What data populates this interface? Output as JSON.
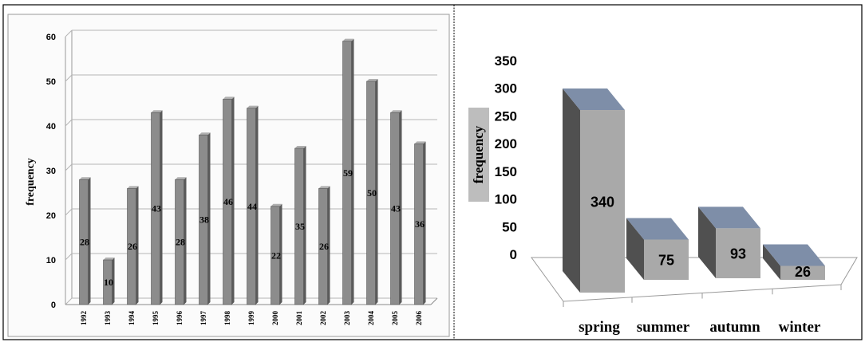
{
  "chart_data": [
    {
      "type": "bar",
      "ylabel": "frequency",
      "ylim": [
        0,
        60
      ],
      "yticks": [
        0,
        10,
        20,
        30,
        40,
        50,
        60
      ],
      "grid": true,
      "categories": [
        "1992",
        "1993",
        "1994",
        "1995",
        "1996",
        "1997",
        "1998",
        "1999",
        "2000",
        "2001",
        "2002",
        "2003",
        "2004",
        "2005",
        "2006"
      ],
      "values": [
        28,
        10,
        26,
        43,
        28,
        38,
        46,
        44,
        22,
        35,
        26,
        59,
        50,
        43,
        36
      ],
      "data_labels": [
        "28",
        "10",
        "26",
        "43",
        "28",
        "38",
        "46",
        "44",
        "22",
        "35",
        "26",
        "59",
        "50",
        "43",
        "36"
      ],
      "bar_color": "#8c8c8c"
    },
    {
      "type": "bar",
      "ylabel": "frequency",
      "ylim": [
        0,
        350
      ],
      "yticks": [
        0,
        50,
        100,
        150,
        200,
        250,
        300,
        350
      ],
      "grid": false,
      "categories": [
        "spring",
        "summer",
        "autumn",
        "winter"
      ],
      "values": [
        340,
        75,
        93,
        26
      ],
      "data_labels": [
        "340",
        "75",
        "93",
        "26"
      ],
      "front_color": "#a9a9a9",
      "side_color": "#505050",
      "top_color": "#7e8ea8"
    }
  ]
}
